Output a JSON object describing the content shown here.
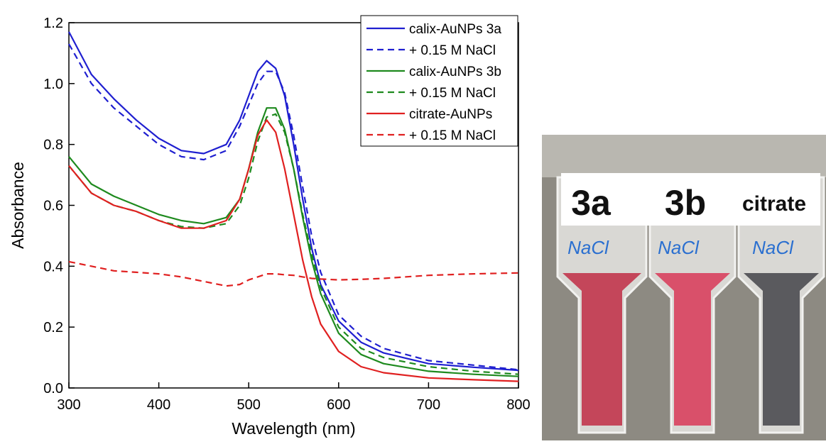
{
  "chart_data": {
    "type": "line",
    "x_label": "Wavelength (nm)",
    "y_label": "Absorbance",
    "x": [
      300,
      325,
      350,
      375,
      400,
      425,
      450,
      475,
      490,
      500,
      510,
      520,
      530,
      540,
      550,
      560,
      570,
      580,
      600,
      625,
      650,
      700,
      750,
      800
    ],
    "series": [
      {
        "name": "calix-AuNPs 3a",
        "color": "#1f1fd0",
        "dashed": false,
        "values": [
          1.17,
          1.03,
          0.95,
          0.88,
          0.82,
          0.78,
          0.77,
          0.8,
          0.88,
          0.96,
          1.04,
          1.075,
          1.05,
          0.96,
          0.8,
          0.62,
          0.46,
          0.34,
          0.22,
          0.15,
          0.115,
          0.08,
          0.068,
          0.058
        ]
      },
      {
        "name": "+ 0.15 M NaCl",
        "color": "#1f1fd0",
        "dashed": true,
        "values": [
          1.13,
          1.0,
          0.92,
          0.86,
          0.8,
          0.76,
          0.75,
          0.78,
          0.86,
          0.93,
          1.0,
          1.04,
          1.04,
          0.97,
          0.83,
          0.66,
          0.5,
          0.38,
          0.24,
          0.17,
          0.13,
          0.09,
          0.075,
          0.06
        ]
      },
      {
        "name": "calix-AuNPs 3b",
        "color": "#1e8a1e",
        "dashed": false,
        "values": [
          0.76,
          0.67,
          0.63,
          0.6,
          0.57,
          0.55,
          0.54,
          0.56,
          0.62,
          0.72,
          0.84,
          0.92,
          0.92,
          0.85,
          0.72,
          0.56,
          0.42,
          0.31,
          0.18,
          0.11,
          0.08,
          0.055,
          0.045,
          0.038
        ]
      },
      {
        "name": "+ 0.15 M NaCl",
        "color": "#1e8a1e",
        "dashed": true,
        "values": [
          0.73,
          0.64,
          0.6,
          0.58,
          0.55,
          0.53,
          0.525,
          0.54,
          0.6,
          0.69,
          0.81,
          0.89,
          0.9,
          0.84,
          0.72,
          0.57,
          0.44,
          0.33,
          0.2,
          0.13,
          0.1,
          0.07,
          0.055,
          0.045
        ]
      },
      {
        "name": "citrate-AuNPs",
        "color": "#e02020",
        "dashed": false,
        "values": [
          0.73,
          0.64,
          0.6,
          0.58,
          0.55,
          0.525,
          0.525,
          0.55,
          0.62,
          0.72,
          0.83,
          0.88,
          0.84,
          0.72,
          0.57,
          0.42,
          0.3,
          0.21,
          0.12,
          0.07,
          0.05,
          0.033,
          0.027,
          0.022
        ]
      },
      {
        "name": "+ 0.15 M NaCl",
        "color": "#e02020",
        "dashed": true,
        "values": [
          0.415,
          0.4,
          0.385,
          0.38,
          0.375,
          0.365,
          0.35,
          0.335,
          0.34,
          0.355,
          0.365,
          0.375,
          0.375,
          0.372,
          0.37,
          0.365,
          0.36,
          0.358,
          0.355,
          0.357,
          0.36,
          0.37,
          0.375,
          0.378
        ]
      }
    ],
    "xlim": [
      300,
      800
    ],
    "xticks": [
      300,
      400,
      500,
      600,
      700,
      800
    ],
    "ylim": [
      0,
      1.2
    ],
    "yticks": [
      {
        "value": 0,
        "label": "0.0"
      },
      {
        "value": 0.2,
        "label": "0.2"
      },
      {
        "value": 0.4,
        "label": "0.4"
      },
      {
        "value": 0.6,
        "label": "0.6"
      },
      {
        "value": 0.8,
        "label": "0.8"
      },
      {
        "value": 1,
        "label": "1.0"
      },
      {
        "value": 1.2,
        "label": "1.2"
      }
    ],
    "legend": "top-right",
    "grid": false
  },
  "photo": {
    "labels": [
      "3a",
      "3b",
      "citrate"
    ],
    "handwriting": [
      "NaCl",
      "NaCl",
      "NaCl"
    ]
  }
}
